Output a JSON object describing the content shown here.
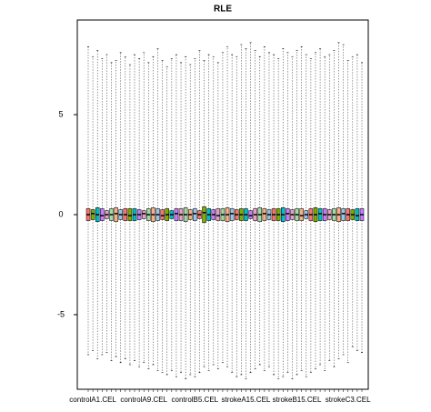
{
  "chart_data": {
    "type": "box",
    "title": "RLE",
    "categories": [
      null,
      "controlA1.CEL",
      null,
      null,
      null,
      null,
      null,
      null,
      null,
      null,
      null,
      null,
      "controlA9.CEL",
      null,
      null,
      null,
      null,
      null,
      null,
      null,
      null,
      null,
      null,
      "controlB5.CEL",
      null,
      null,
      null,
      null,
      null,
      null,
      null,
      null,
      null,
      null,
      "strokeA15.CEL",
      null,
      null,
      null,
      null,
      null,
      null,
      null,
      null,
      null,
      null,
      "strokeB15.CEL",
      null,
      null,
      null,
      null,
      null,
      null,
      null,
      null,
      null,
      null,
      "strokeC3.CEL",
      null,
      null,
      null
    ],
    "max": [
      8.4,
      7.9,
      8.2,
      7.8,
      8.0,
      7.6,
      7.7,
      8.1,
      7.9,
      7.5,
      8.0,
      7.8,
      8.1,
      7.6,
      7.9,
      8.3,
      7.7,
      7.4,
      7.8,
      8.0,
      7.6,
      7.9,
      7.5,
      7.8,
      8.2,
      7.7,
      8.0,
      7.9,
      7.6,
      8.1,
      8.4,
      8.0,
      7.9,
      8.5,
      8.3,
      8.6,
      8.2,
      7.9,
      8.4,
      8.1,
      8.0,
      7.8,
      8.3,
      8.1,
      7.9,
      8.2,
      8.4,
      8.0,
      7.8,
      8.1,
      8.3,
      7.9,
      8.0,
      8.2,
      8.6,
      8.5,
      7.7,
      7.9,
      8.0,
      7.6
    ],
    "q3": [
      0.3,
      0.25,
      0.35,
      0.3,
      0.2,
      0.3,
      0.35,
      0.25,
      0.3,
      0.3,
      0.3,
      0.25,
      0.2,
      0.3,
      0.35,
      0.3,
      0.25,
      0.3,
      0.2,
      0.3,
      0.3,
      0.35,
      0.25,
      0.3,
      0.2,
      0.4,
      0.3,
      0.25,
      0.3,
      0.3,
      0.35,
      0.3,
      0.25,
      0.3,
      0.3,
      0.2,
      0.3,
      0.35,
      0.3,
      0.25,
      0.3,
      0.3,
      0.35,
      0.3,
      0.25,
      0.3,
      0.3,
      0.2,
      0.3,
      0.35,
      0.3,
      0.3,
      0.25,
      0.3,
      0.35,
      0.3,
      0.3,
      0.25,
      0.3,
      0.3
    ],
    "median": [
      0.0,
      0.05,
      0.0,
      -0.05,
      0.0,
      0.0,
      0.05,
      0.0,
      0.0,
      -0.05,
      0.0,
      0.0,
      0.05,
      0.0,
      0.0,
      0.0,
      -0.05,
      0.0,
      0.0,
      0.05,
      0.0,
      0.0,
      0.0,
      0.05,
      0.0,
      0.1,
      0.0,
      0.0,
      -0.05,
      0.0,
      0.0,
      0.05,
      0.0,
      0.0,
      0.0,
      -0.05,
      0.0,
      0.0,
      0.05,
      0.0,
      0.0,
      0.0,
      0.0,
      0.05,
      0.0,
      0.0,
      -0.05,
      0.0,
      0.0,
      0.0,
      0.05,
      0.0,
      0.0,
      0.0,
      0.0,
      0.05,
      0.0,
      0.0,
      -0.05,
      0.0
    ],
    "q1": [
      -0.3,
      -0.25,
      -0.35,
      -0.3,
      -0.2,
      -0.3,
      -0.35,
      -0.25,
      -0.3,
      -0.3,
      -0.3,
      -0.25,
      -0.2,
      -0.3,
      -0.35,
      -0.3,
      -0.25,
      -0.3,
      -0.2,
      -0.3,
      -0.3,
      -0.35,
      -0.25,
      -0.3,
      -0.2,
      -0.4,
      -0.3,
      -0.25,
      -0.3,
      -0.3,
      -0.35,
      -0.3,
      -0.25,
      -0.3,
      -0.3,
      -0.2,
      -0.3,
      -0.35,
      -0.3,
      -0.25,
      -0.3,
      -0.3,
      -0.35,
      -0.3,
      -0.25,
      -0.3,
      -0.3,
      -0.2,
      -0.3,
      -0.35,
      -0.3,
      -0.3,
      -0.25,
      -0.3,
      -0.35,
      -0.3,
      -0.3,
      -0.25,
      -0.3,
      -0.3
    ],
    "min": [
      -7.0,
      -6.8,
      -7.2,
      -7.0,
      -6.9,
      -7.3,
      -7.1,
      -7.4,
      -7.2,
      -7.5,
      -7.3,
      -7.6,
      -7.4,
      -7.7,
      -7.5,
      -7.8,
      -7.9,
      -8.0,
      -7.8,
      -8.1,
      -7.9,
      -8.2,
      -8.0,
      -8.1,
      -7.9,
      -7.6,
      -7.8,
      -7.5,
      -7.7,
      -7.4,
      -7.6,
      -7.9,
      -8.1,
      -8.0,
      -8.2,
      -7.9,
      -7.7,
      -7.5,
      -7.8,
      -7.6,
      -8.0,
      -8.2,
      -8.1,
      -7.9,
      -8.2,
      -8.0,
      -7.8,
      -8.1,
      -7.9,
      -7.7,
      -7.5,
      -7.8,
      -7.3,
      -7.6,
      -7.2,
      -7.0,
      -7.4,
      -6.6,
      -6.8,
      -6.9
    ],
    "colors": [
      "#f8766d",
      "#7cae00",
      "#00bfc4",
      "#c77cff",
      "#e6a0c4",
      "#a3d9a5",
      "#f4b183",
      "#9dc3e6"
    ],
    "ylim": [
      -8.73,
      9.73
    ],
    "yticks": [
      -5,
      0,
      5
    ]
  }
}
